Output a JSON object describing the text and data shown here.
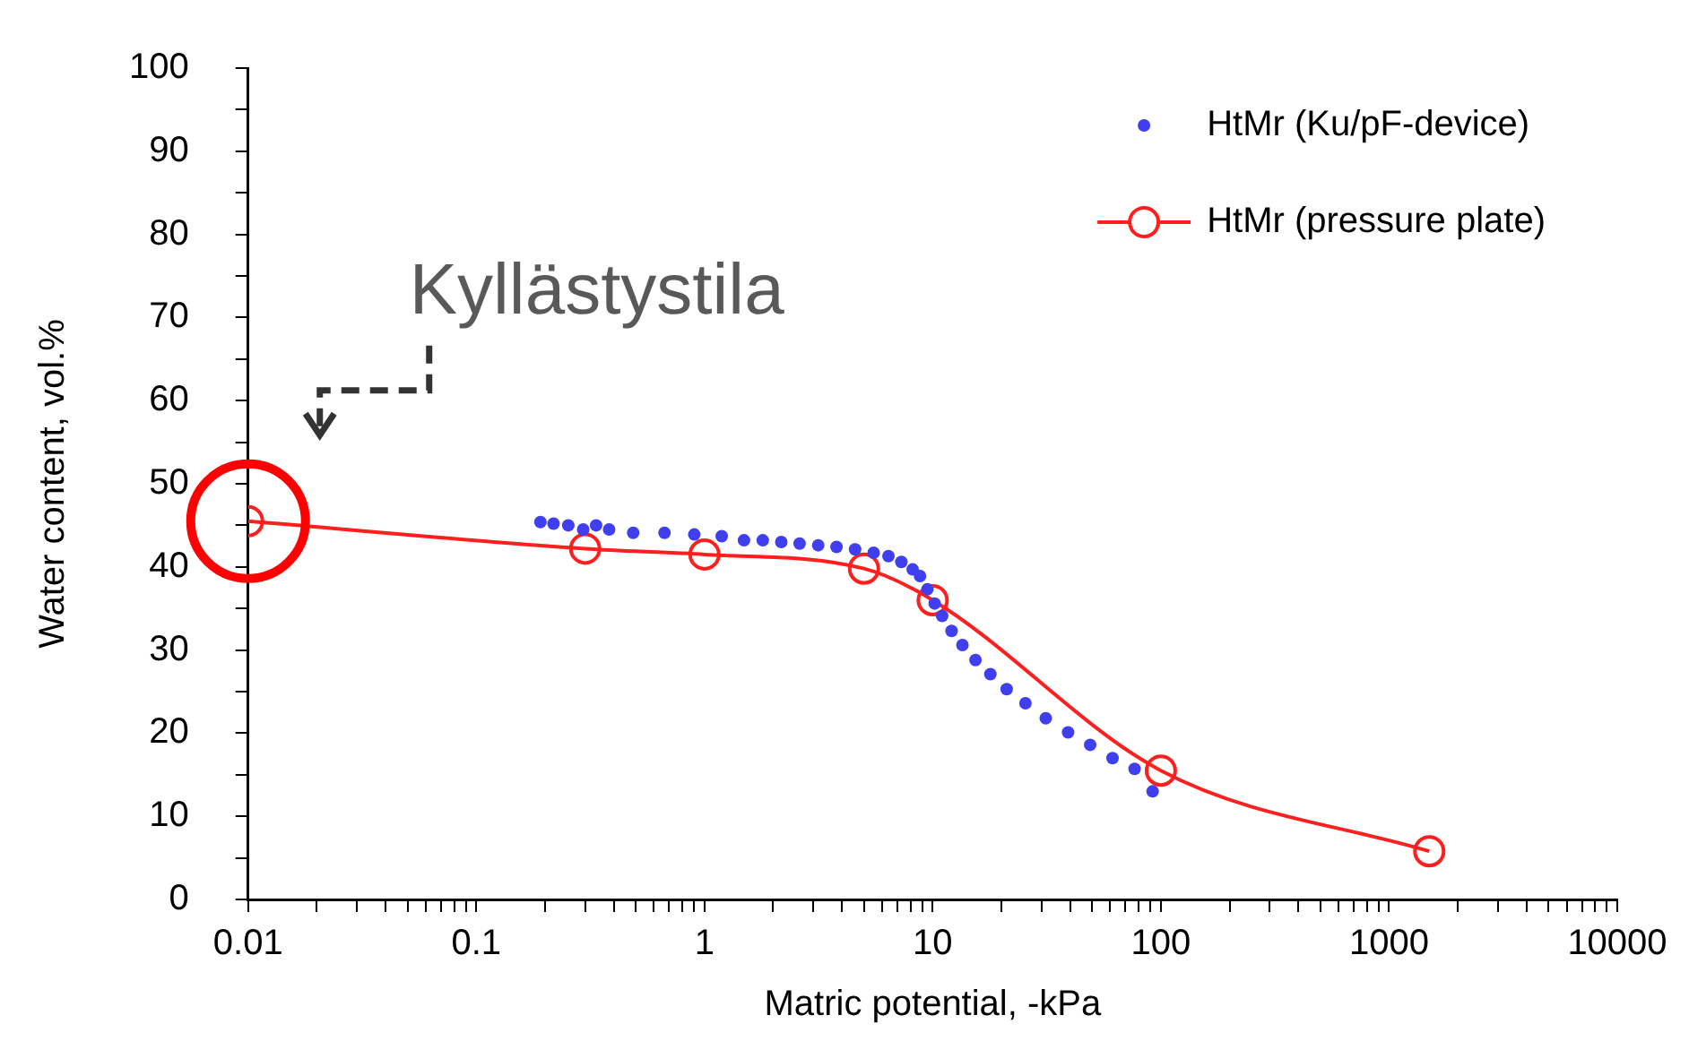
{
  "chart_data": {
    "type": "scatter",
    "xlabel": "Matric potential, -kPa",
    "ylabel": "Water content, vol.%",
    "log": "x",
    "legend": "top right",
    "grid": false,
    "xlim": [
      0.01,
      10000
    ],
    "ylim": [
      0,
      100
    ],
    "xticks": [
      0.01,
      {
        "value": 0.02,
        "label": null
      },
      {
        "value": 0.03,
        "label": null
      },
      {
        "value": 0.04,
        "label": null
      },
      {
        "value": 0.05,
        "label": null
      },
      {
        "value": 0.06,
        "label": null
      },
      {
        "value": 0.07,
        "label": null
      },
      {
        "value": 0.08,
        "label": null
      },
      {
        "value": 0.09,
        "label": null
      },
      0.1,
      {
        "value": 0.2,
        "label": null
      },
      {
        "value": 0.3,
        "label": null
      },
      {
        "value": 0.4,
        "label": null
      },
      {
        "value": 0.5,
        "label": null
      },
      {
        "value": 0.6,
        "label": null
      },
      {
        "value": 0.7,
        "label": null
      },
      {
        "value": 0.8,
        "label": null
      },
      {
        "value": 0.9,
        "label": null
      },
      1,
      {
        "value": 2,
        "label": null
      },
      {
        "value": 3,
        "label": null
      },
      {
        "value": 4,
        "label": null
      },
      {
        "value": 5,
        "label": null
      },
      {
        "value": 6,
        "label": null
      },
      {
        "value": 7,
        "label": null
      },
      {
        "value": 8,
        "label": null
      },
      {
        "value": 9,
        "label": null
      },
      10,
      {
        "value": 20,
        "label": null
      },
      {
        "value": 30,
        "label": null
      },
      {
        "value": 40,
        "label": null
      },
      {
        "value": 50,
        "label": null
      },
      {
        "value": 60,
        "label": null
      },
      {
        "value": 70,
        "label": null
      },
      {
        "value": 80,
        "label": null
      },
      {
        "value": 90,
        "label": null
      },
      100,
      {
        "value": 200,
        "label": null
      },
      {
        "value": 300,
        "label": null
      },
      {
        "value": 400,
        "label": null
      },
      {
        "value": 500,
        "label": null
      },
      {
        "value": 600,
        "label": null
      },
      {
        "value": 700,
        "label": null
      },
      {
        "value": 800,
        "label": null
      },
      {
        "value": 900,
        "label": null
      },
      1000,
      {
        "value": 2000,
        "label": null
      },
      {
        "value": 3000,
        "label": null
      },
      {
        "value": 4000,
        "label": null
      },
      {
        "value": 5000,
        "label": null
      },
      {
        "value": 6000,
        "label": null
      },
      {
        "value": 7000,
        "label": null
      },
      {
        "value": 8000,
        "label": null
      },
      {
        "value": 9000,
        "label": null
      },
      10000
    ],
    "yticks": [
      0,
      {
        "value": 5,
        "label": null
      },
      10,
      {
        "value": 15,
        "label": null
      },
      20,
      {
        "value": 25,
        "label": null
      },
      30,
      {
        "value": 35,
        "label": null
      },
      40,
      {
        "value": 45,
        "label": null
      },
      50,
      {
        "value": 55,
        "label": null
      },
      60,
      {
        "value": 65,
        "label": null
      },
      70,
      {
        "value": 75,
        "label": null
      },
      80,
      {
        "value": 85,
        "label": null
      },
      90,
      {
        "value": 95,
        "label": null
      },
      100
    ],
    "annotations": [
      "Kyllästystila"
    ],
    "series": [
      {
        "name": "HtMr (Ku/pF-device)",
        "type": "scatter",
        "marker": "circle",
        "color": "#3f3ff0",
        "x": [
          0.191,
          0.218,
          0.253,
          0.294,
          0.335,
          0.382,
          0.487,
          0.668,
          0.902,
          1.19,
          1.49,
          1.8,
          2.17,
          2.61,
          3.15,
          3.79,
          4.57,
          5.51,
          6.4,
          7.29,
          8.17,
          8.8,
          9.48,
          10.2,
          11,
          12.1,
          13.5,
          15.4,
          17.9,
          21.1,
          25.5,
          31.3,
          39.2,
          49,
          61.4,
          76.7,
          92
        ],
        "values": [
          45.4,
          45.2,
          45,
          44.5,
          45,
          44.5,
          44.1,
          44.1,
          43.9,
          43.7,
          43.2,
          43.2,
          43,
          42.8,
          42.6,
          42.4,
          42.1,
          41.7,
          41.3,
          40.6,
          39.7,
          38.9,
          37.3,
          35.6,
          34.1,
          32.3,
          30.6,
          28.8,
          27.1,
          25.3,
          23.6,
          21.8,
          20.1,
          18.6,
          17,
          15.7,
          13
        ]
      },
      {
        "name": "HtMr (pressure plate)",
        "type": "line",
        "marker": "circle",
        "line_style": "solid",
        "color": "#ff1f1f",
        "x": [
          0.01,
          0.3,
          1,
          5,
          10,
          100,
          1500
        ],
        "values": [
          45.5,
          42.2,
          41.5,
          39.8,
          36,
          15.5,
          5.8
        ]
      }
    ]
  }
}
